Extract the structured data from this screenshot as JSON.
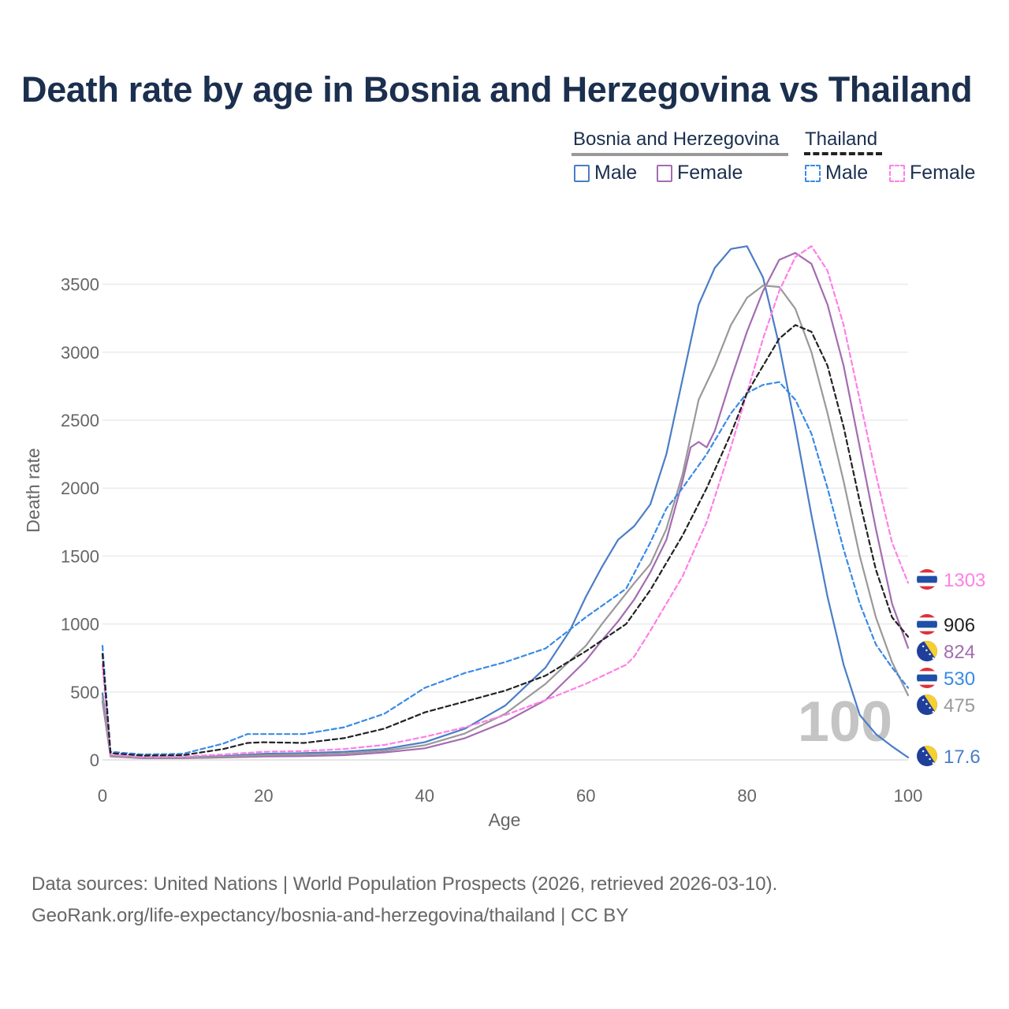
{
  "title": "Death rate by age in Bosnia and Herzegovina vs Thailand",
  "legend": {
    "groups": [
      {
        "name": "Bosnia and Herzegovina",
        "items": [
          {
            "label": "Male",
            "color": "#4a7dc6",
            "style": "solid"
          },
          {
            "label": "Female",
            "color": "#a46cb1",
            "style": "solid"
          }
        ]
      },
      {
        "name": "Thailand",
        "items": [
          {
            "label": "Male",
            "color": "#3a8ae6",
            "style": "dashed"
          },
          {
            "label": "Female",
            "color": "#ff7fe6",
            "style": "dashed"
          }
        ]
      }
    ]
  },
  "chart_data": {
    "type": "line",
    "title": "Death rate by age in Bosnia and Herzegovina vs Thailand",
    "xlabel": "Age",
    "ylabel": "Death rate",
    "xlim": [
      0,
      100
    ],
    "ylim": [
      -60,
      3800
    ],
    "xticks": [
      "0",
      "20",
      "40",
      "60",
      "80",
      "100"
    ],
    "yticks": [
      "0",
      "500",
      "1000",
      "1500",
      "2000",
      "2500",
      "3000",
      "3500"
    ],
    "grid": true,
    "year_annotation": "100",
    "series": [
      {
        "name": "Bosnia and Herzegovina Male",
        "country": "Bosnia and Herzegovina",
        "sex": "Male",
        "color": "#4a7dc6",
        "dash": "solid",
        "x": [
          0,
          1,
          5,
          10,
          15,
          20,
          25,
          30,
          35,
          40,
          45,
          50,
          55,
          58,
          60,
          62,
          64,
          66,
          68,
          70,
          72,
          74,
          76,
          78,
          80,
          82,
          84,
          86,
          88,
          90,
          92,
          94,
          96,
          98,
          100
        ],
        "y": [
          490,
          30,
          18,
          18,
          28,
          45,
          50,
          60,
          80,
          130,
          230,
          400,
          680,
          950,
          1200,
          1420,
          1620,
          1720,
          1880,
          2250,
          2800,
          3350,
          3620,
          3760,
          3780,
          3550,
          3050,
          2450,
          1800,
          1200,
          700,
          330,
          190,
          100,
          18
        ],
        "end_label": "17.6"
      },
      {
        "name": "Bosnia and Herzegovina Female",
        "country": "Bosnia and Herzegovina",
        "sex": "Female",
        "color": "#a46cb1",
        "dash": "solid",
        "x": [
          0,
          1,
          5,
          10,
          15,
          20,
          25,
          30,
          35,
          40,
          45,
          50,
          55,
          60,
          62,
          64,
          66,
          68,
          70,
          72,
          73,
          74,
          75,
          76,
          78,
          80,
          82,
          84,
          86,
          88,
          90,
          92,
          94,
          96,
          98,
          100
        ],
        "y": [
          430,
          25,
          12,
          12,
          18,
          25,
          28,
          35,
          55,
          85,
          160,
          280,
          440,
          730,
          880,
          1020,
          1180,
          1380,
          1620,
          2050,
          2300,
          2340,
          2300,
          2420,
          2800,
          3150,
          3450,
          3680,
          3730,
          3650,
          3350,
          2900,
          2300,
          1700,
          1150,
          824
        ],
        "end_label": "824"
      },
      {
        "name": "Bosnia and Herzegovina Total",
        "country": "Bosnia and Herzegovina",
        "sex": "Total",
        "color": "#999999",
        "dash": "solid",
        "x": [
          0,
          1,
          5,
          10,
          15,
          20,
          25,
          30,
          35,
          40,
          45,
          50,
          55,
          60,
          62,
          64,
          66,
          68,
          70,
          72,
          74,
          76,
          78,
          80,
          82,
          84,
          86,
          88,
          90,
          92,
          94,
          96,
          98,
          100
        ],
        "y": [
          460,
          28,
          15,
          15,
          23,
          35,
          40,
          48,
          68,
          108,
          195,
          340,
          560,
          840,
          1000,
          1150,
          1300,
          1440,
          1700,
          2100,
          2650,
          2900,
          3200,
          3400,
          3490,
          3480,
          3320,
          3000,
          2550,
          2050,
          1500,
          1050,
          720,
          475
        ],
        "end_label": "475"
      },
      {
        "name": "Thailand Male",
        "country": "Thailand",
        "sex": "Male",
        "color": "#3a8ae6",
        "dash": "dashed",
        "x": [
          0,
          1,
          5,
          10,
          15,
          18,
          20,
          25,
          30,
          35,
          40,
          45,
          50,
          55,
          60,
          65,
          68,
          70,
          72,
          75,
          78,
          80,
          82,
          84,
          86,
          88,
          90,
          92,
          94,
          96,
          98,
          100
        ],
        "y": [
          840,
          60,
          40,
          45,
          120,
          190,
          190,
          190,
          240,
          340,
          530,
          640,
          720,
          820,
          1050,
          1260,
          1600,
          1850,
          2000,
          2250,
          2550,
          2700,
          2760,
          2780,
          2650,
          2400,
          2000,
          1550,
          1150,
          850,
          680,
          530
        ],
        "end_label": "530"
      },
      {
        "name": "Thailand Female",
        "country": "Thailand",
        "sex": "Female",
        "color": "#ff7fe6",
        "dash": "dashed",
        "x": [
          0,
          1,
          5,
          10,
          15,
          20,
          25,
          30,
          35,
          40,
          45,
          50,
          55,
          60,
          65,
          66,
          68,
          70,
          72,
          75,
          78,
          80,
          82,
          84,
          86,
          88,
          90,
          92,
          94,
          96,
          98,
          100
        ],
        "y": [
          700,
          40,
          22,
          25,
          40,
          60,
          65,
          80,
          110,
          170,
          240,
          330,
          440,
          560,
          700,
          760,
          950,
          1150,
          1350,
          1750,
          2300,
          2700,
          3100,
          3450,
          3700,
          3780,
          3600,
          3200,
          2650,
          2100,
          1600,
          1303
        ],
        "end_label": "1303"
      },
      {
        "name": "Thailand Total",
        "country": "Thailand",
        "sex": "Total",
        "color": "#222222",
        "dash": "dashed",
        "x": [
          0,
          1,
          5,
          10,
          15,
          18,
          20,
          25,
          30,
          35,
          40,
          45,
          50,
          55,
          60,
          65,
          68,
          70,
          72,
          75,
          78,
          80,
          82,
          84,
          86,
          88,
          90,
          92,
          94,
          96,
          98,
          100
        ],
        "y": [
          780,
          50,
          32,
          35,
          80,
          125,
          130,
          125,
          160,
          230,
          350,
          430,
          510,
          620,
          800,
          1000,
          1250,
          1450,
          1650,
          2000,
          2400,
          2700,
          2900,
          3100,
          3200,
          3150,
          2900,
          2450,
          1900,
          1400,
          1050,
          906
        ],
        "end_label": "906"
      }
    ]
  },
  "end_labels": [
    {
      "value": "1303",
      "color": "#ff7fe6",
      "flag": "thailand-flag"
    },
    {
      "value": "906",
      "color": "#222222",
      "flag": "thailand-flag"
    },
    {
      "value": "824",
      "color": "#a46cb1",
      "flag": "bosnia-flag"
    },
    {
      "value": "530",
      "color": "#3a8ae6",
      "flag": "thailand-flag"
    },
    {
      "value": "475",
      "color": "#999999",
      "flag": "bosnia-flag"
    },
    {
      "value": "17.6",
      "color": "#4a7dc6",
      "flag": "bosnia-flag"
    }
  ],
  "sources": {
    "line1": "Data sources: United Nations | World Population Prospects (2026, retrieved 2026-03-10).",
    "line2": "GeoRank.org/life-expectancy/bosnia-and-herzegovina/thailand | CC BY"
  }
}
